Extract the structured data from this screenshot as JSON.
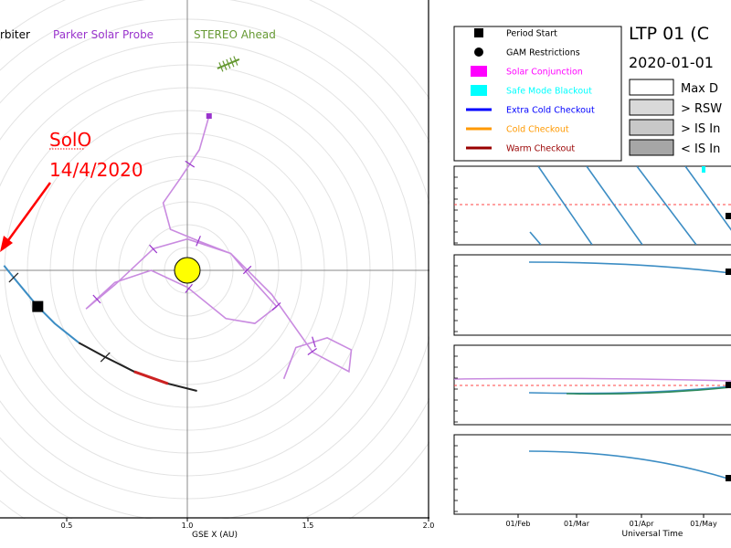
{
  "chart_data": [
    {
      "type": "scatter",
      "subtype": "polar-orbit-plot",
      "legend_top": [
        "Solar Orbiter",
        "Parker Solar Probe",
        "STEREO Ahead"
      ],
      "legend_top_visible": [
        "rbiter",
        "Parker Solar Probe",
        "STEREO Ahead"
      ],
      "legend_colors": {
        "solo": "#000000",
        "psp": "#9933cc",
        "stereo": "#669933"
      },
      "xlabel": "GSE X (AU)",
      "xticks": [
        "0.5",
        "1.0",
        "1.5",
        "2.0"
      ],
      "xlim_visible": [
        0.2,
        2.0
      ],
      "origin_marker": "Sun",
      "grid": "concentric-circles-and-axes",
      "annotation": {
        "line1": "SolO",
        "line2": "14/4/2020",
        "color": "#ff0000"
      },
      "solo_track": [
        [
          0.24,
          0.02
        ],
        [
          0.28,
          -0.03
        ],
        [
          0.33,
          -0.09
        ],
        [
          0.38,
          -0.15
        ],
        [
          0.45,
          -0.22
        ],
        [
          0.55,
          -0.3
        ],
        [
          0.66,
          -0.36
        ],
        [
          0.78,
          -0.42
        ],
        [
          0.92,
          -0.47
        ],
        [
          1.04,
          -0.5
        ]
      ],
      "psp_track": [
        [
          1.09,
          0.64
        ],
        [
          1.05,
          0.5
        ],
        [
          0.97,
          0.38
        ],
        [
          0.9,
          0.28
        ],
        [
          0.93,
          0.17
        ],
        [
          1.05,
          0.12
        ],
        [
          1.18,
          0.07
        ],
        [
          1.28,
          -0.05
        ],
        [
          1.37,
          -0.15
        ],
        [
          1.28,
          -0.22
        ],
        [
          1.16,
          -0.2
        ],
        [
          1.0,
          -0.07
        ],
        [
          0.85,
          0.0
        ],
        [
          0.7,
          -0.05
        ],
        [
          0.58,
          -0.16
        ],
        [
          0.7,
          -0.06
        ],
        [
          0.86,
          0.09
        ],
        [
          1.0,
          0.13
        ],
        [
          1.18,
          0.07
        ],
        [
          1.35,
          -0.1
        ],
        [
          1.52,
          -0.34
        ],
        [
          1.67,
          -0.42
        ],
        [
          1.68,
          -0.33
        ],
        [
          1.58,
          -0.28
        ],
        [
          1.45,
          -0.32
        ],
        [
          1.4,
          -0.45
        ]
      ],
      "stereo_position": [
        1.17,
        0.86
      ]
    },
    {
      "type": "line",
      "subtype": "timeline-panels",
      "xlabel": "Universal Time",
      "xticks": [
        "01/Feb",
        "01/Mar",
        "01/Apr",
        "01/May"
      ],
      "panels": 4
    }
  ],
  "legend": {
    "title": "LTP 01 (C",
    "date": "2020-01-01",
    "items": [
      {
        "label": "Period Start",
        "color": "#000000",
        "marker": "square"
      },
      {
        "label": "GAM Restrictions",
        "color": "#000000",
        "marker": "circle"
      },
      {
        "label": "Solar Conjunction",
        "color": "#ff00ff",
        "marker": "square"
      },
      {
        "label": "Safe Mode Blackout",
        "color": "#00ffff",
        "marker": "square"
      },
      {
        "label": "Extra Cold Checkout",
        "color": "#0000ff",
        "marker": "line"
      },
      {
        "label": "Cold Checkout",
        "color": "#ff9900",
        "marker": "line"
      },
      {
        "label": "Warm Checkout",
        "color": "#990000",
        "marker": "line"
      }
    ],
    "boxes": [
      {
        "label": "Max D",
        "fill": "#ffffff"
      },
      {
        "label": "> RSW",
        "fill": "#d9d9d9"
      },
      {
        "label": "> IS In",
        "fill": "#c8c8c8"
      },
      {
        "label": "< IS In",
        "fill": "#a6a6a6"
      }
    ]
  }
}
